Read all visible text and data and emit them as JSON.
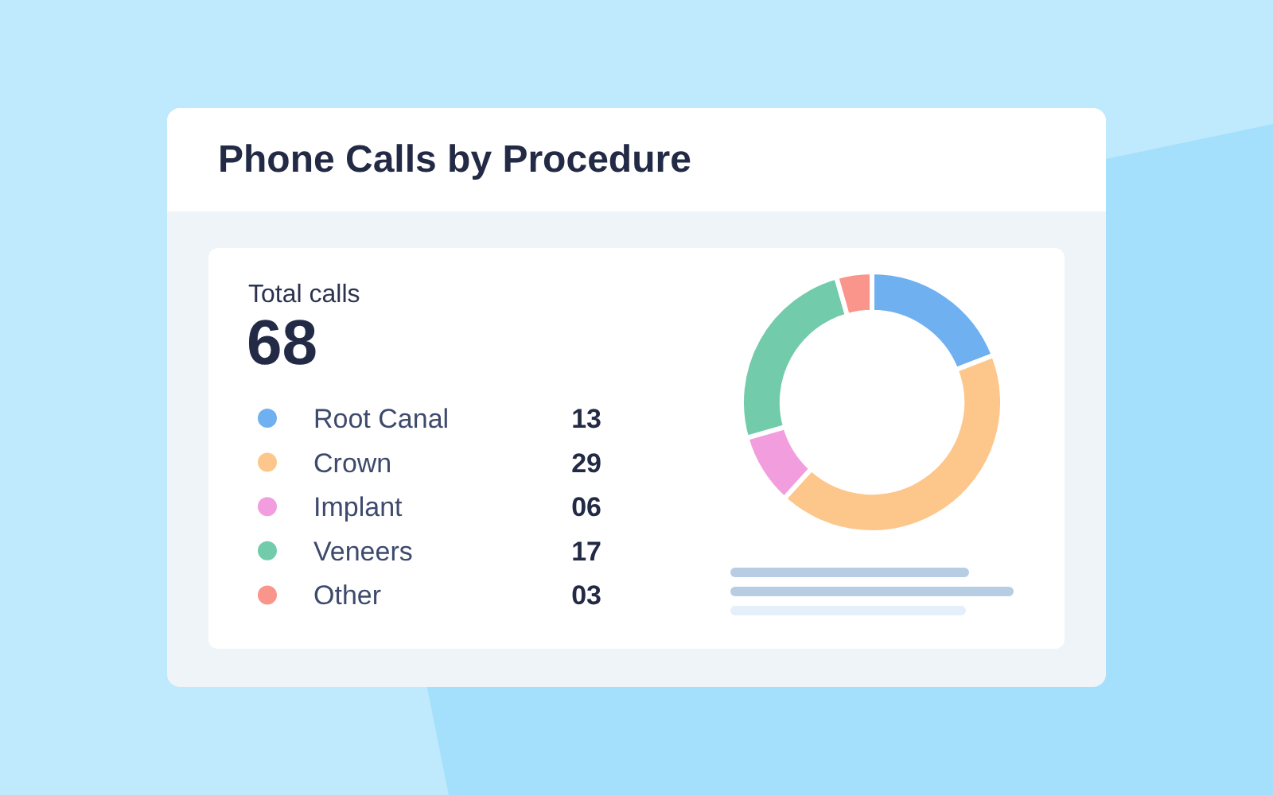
{
  "chart_data": {
    "type": "donut",
    "title": "Phone Calls by Procedure",
    "annotations": [
      "Total calls",
      "68"
    ],
    "categories": [
      "Root Canal",
      "Crown",
      "Implant",
      "Veneers",
      "Other"
    ],
    "values": [
      13,
      29,
      6,
      17,
      3
    ],
    "value_labels": [
      "13",
      "29",
      "06",
      "17",
      "03"
    ],
    "colors": [
      "#6fb0f0",
      "#fdc68a",
      "#f29ede",
      "#72cbab",
      "#f9958a"
    ],
    "legend": "left"
  }
}
